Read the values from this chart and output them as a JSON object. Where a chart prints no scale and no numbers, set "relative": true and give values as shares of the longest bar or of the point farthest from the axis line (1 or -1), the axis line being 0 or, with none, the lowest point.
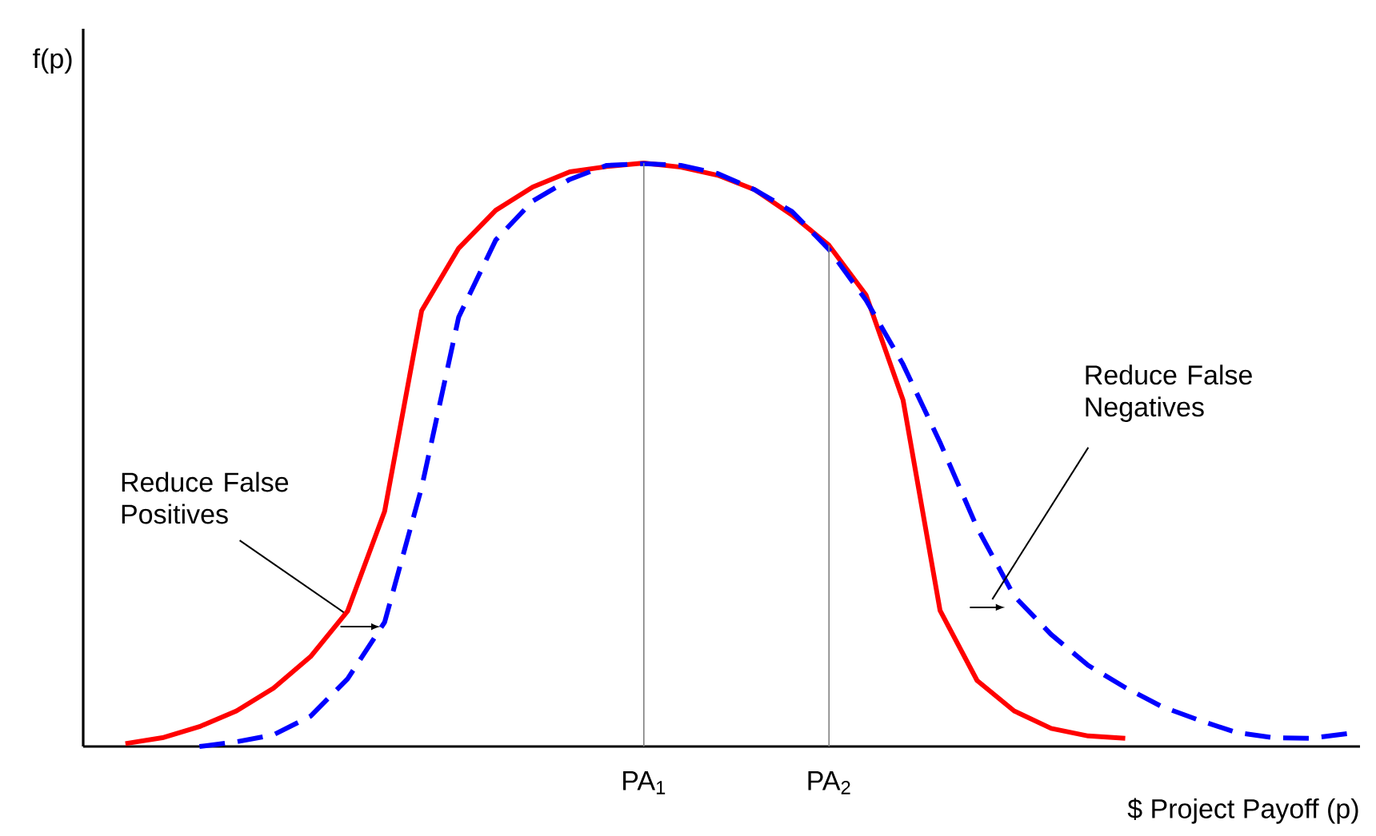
{
  "chart_data": {
    "type": "line",
    "relative": true,
    "xlabel": "$ Project Payoff (p)",
    "ylabel": "f(p)",
    "categories": [
      null,
      null,
      null,
      null,
      null,
      null,
      null,
      null,
      null,
      null,
      null,
      null,
      null,
      null,
      null,
      "PA$_{1}$",
      null,
      null,
      null,
      null,
      "PA$_{2}$",
      null,
      null,
      null,
      null,
      null,
      null,
      null,
      null,
      null,
      null,
      null,
      null,
      null,
      null
    ],
    "series": [
      {
        "color": "#ff0000",
        "line_style": "solid",
        "values": [
          null,
          0.005,
          0.015,
          0.034,
          0.061,
          0.1,
          0.154,
          0.232,
          0.403,
          0.747,
          0.854,
          0.919,
          0.959,
          0.985,
          0.994,
          1.0,
          0.993,
          0.979,
          0.954,
          0.911,
          0.859,
          0.774,
          0.594,
          0.233,
          0.113,
          0.061,
          0.031,
          0.018,
          0.014,
          null,
          null,
          null,
          null,
          null,
          null
        ]
      },
      {
        "color": "#0000ff",
        "line_style": "dashed",
        "values": [
          null,
          null,
          null,
          0,
          0.008,
          0.02,
          0.052,
          0.116,
          0.213,
          0.444,
          0.736,
          0.868,
          0.935,
          0.972,
          0.996,
          0.999,
          0.996,
          0.982,
          0.954,
          0.917,
          0.852,
          0.765,
          0.655,
          0.521,
          0.375,
          0.258,
          0.192,
          0.139,
          0.101,
          0.068,
          0.045,
          0.024,
          0.015,
          0.014,
          0.022
        ]
      }
    ],
    "ref_lines": [
      {
        "axis": "x",
        "value": "PA$_{1}$",
        "color": "#808080"
      },
      {
        "axis": "x",
        "value": "PA$_{2}$",
        "color": "#808080"
      }
    ],
    "annotations": [
      "Reduce False Positives",
      "Reduce False Negatives"
    ]
  }
}
